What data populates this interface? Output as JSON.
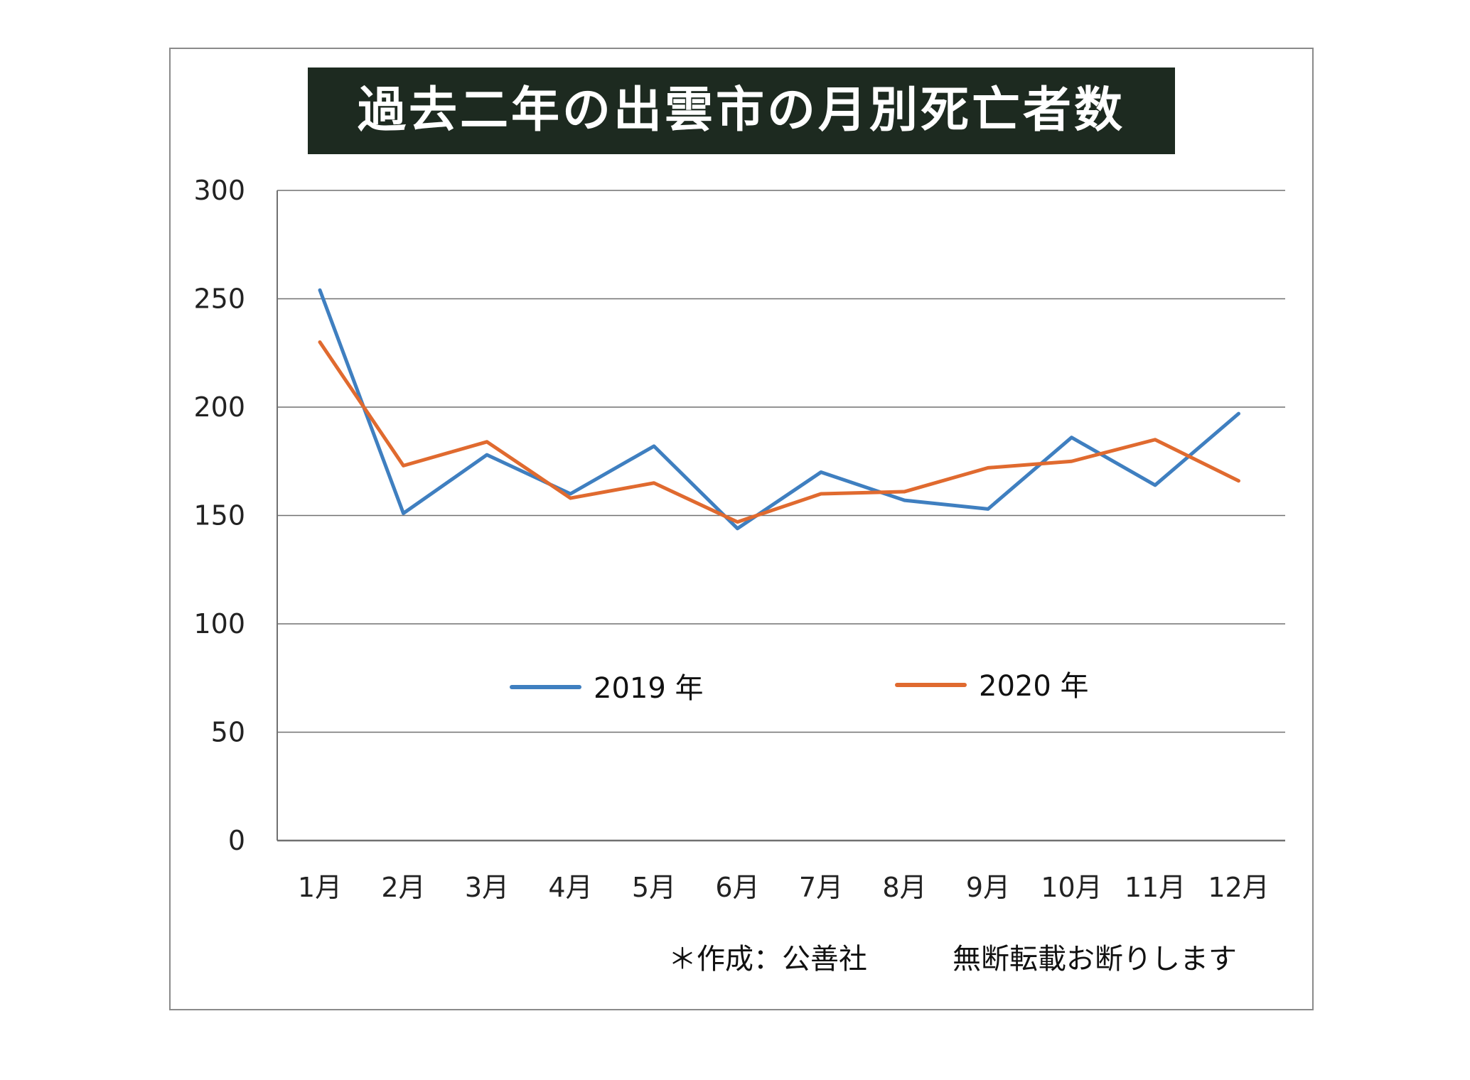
{
  "title": "過去二年の出雲市の月別死亡者数",
  "footnote": {
    "source": "＊作成：公善社",
    "notice": "無断転載お断りします"
  },
  "colors": {
    "series_2019": "#3f7fc0",
    "series_2020": "#e06a2f",
    "title_background": "#1d2a20",
    "gridline": "#707070"
  },
  "chart_data": {
    "type": "line",
    "title": "過去二年の出雲市の月別死亡者数",
    "xlabel": "",
    "ylabel": "",
    "categories": [
      "1月",
      "2月",
      "3月",
      "4月",
      "5月",
      "6月",
      "7月",
      "8月",
      "9月",
      "10月",
      "11月",
      "12月"
    ],
    "ylim": [
      0,
      300
    ],
    "yticks": [
      "0",
      "50",
      "100",
      "150",
      "200",
      "250",
      "300"
    ],
    "grid": true,
    "legend_placement": "inside-lower-center",
    "series": [
      {
        "name": "2019 年",
        "color": "#3f7fc0",
        "values": [
          254,
          151,
          178,
          160,
          182,
          144,
          170,
          157,
          153,
          186,
          164,
          197
        ]
      },
      {
        "name": "2020 年",
        "color": "#e06a2f",
        "values": [
          230,
          173,
          184,
          158,
          165,
          147,
          160,
          161,
          172,
          175,
          185,
          166
        ]
      }
    ]
  }
}
